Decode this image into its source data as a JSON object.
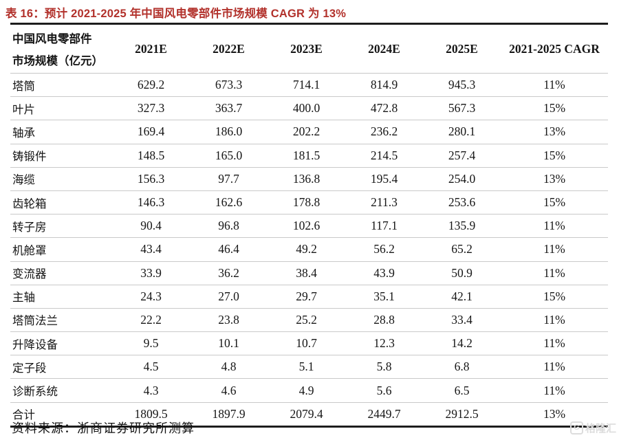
{
  "title": "表 16：预计 2021-2025 年中国风电零部件市场规模 CAGR 为 13%",
  "table": {
    "header_label_line1": "中国风电零部件",
    "header_label_line2": "市场规模（亿元）",
    "columns": [
      "2021E",
      "2022E",
      "2023E",
      "2024E",
      "2025E",
      "2021-2025 CAGR"
    ],
    "rows": [
      {
        "label": "塔筒",
        "values": [
          "629.2",
          "673.3",
          "714.1",
          "814.9",
          "945.3",
          "11%"
        ]
      },
      {
        "label": "叶片",
        "values": [
          "327.3",
          "363.7",
          "400.0",
          "472.8",
          "567.3",
          "15%"
        ]
      },
      {
        "label": "轴承",
        "values": [
          "169.4",
          "186.0",
          "202.2",
          "236.2",
          "280.1",
          "13%"
        ]
      },
      {
        "label": "铸锻件",
        "values": [
          "148.5",
          "165.0",
          "181.5",
          "214.5",
          "257.4",
          "15%"
        ]
      },
      {
        "label": "海缆",
        "values": [
          "156.3",
          "97.7",
          "136.8",
          "195.4",
          "254.0",
          "13%"
        ]
      },
      {
        "label": "齿轮箱",
        "values": [
          "146.3",
          "162.6",
          "178.8",
          "211.3",
          "253.6",
          "15%"
        ]
      },
      {
        "label": "转子房",
        "values": [
          "90.4",
          "96.8",
          "102.6",
          "117.1",
          "135.9",
          "11%"
        ]
      },
      {
        "label": "机舱罩",
        "values": [
          "43.4",
          "46.4",
          "49.2",
          "56.2",
          "65.2",
          "11%"
        ]
      },
      {
        "label": "变流器",
        "values": [
          "33.9",
          "36.2",
          "38.4",
          "43.9",
          "50.9",
          "11%"
        ]
      },
      {
        "label": "主轴",
        "values": [
          "24.3",
          "27.0",
          "29.7",
          "35.1",
          "42.1",
          "15%"
        ]
      },
      {
        "label": "塔筒法兰",
        "values": [
          "22.2",
          "23.8",
          "25.2",
          "28.8",
          "33.4",
          "11%"
        ]
      },
      {
        "label": "升降设备",
        "values": [
          "9.5",
          "10.1",
          "10.7",
          "12.3",
          "14.2",
          "11%"
        ]
      },
      {
        "label": "定子段",
        "values": [
          "4.5",
          "4.8",
          "5.1",
          "5.8",
          "6.8",
          "11%"
        ]
      },
      {
        "label": "诊断系统",
        "values": [
          "4.3",
          "4.6",
          "4.9",
          "5.6",
          "6.5",
          "11%"
        ]
      },
      {
        "label": "合计",
        "values": [
          "1809.5",
          "1897.9",
          "2079.4",
          "2449.7",
          "2912.5",
          "13%"
        ]
      }
    ]
  },
  "source": "资料来源：浙商证券研究所测算",
  "watermark": {
    "logo_letter": "G",
    "text": "格隆汇"
  },
  "colors": {
    "title_red": "#B2312B",
    "border_dark": "#1d1d1d",
    "row_line_gray": "#c9c9c9",
    "watermark_gray": "#dcdcdc",
    "background": "#ffffff"
  },
  "chart_data": {
    "type": "table",
    "title": "预计 2021-2025 年中国风电零部件市场规模 CAGR 为 13%",
    "unit": "亿元",
    "columns": [
      "2021E",
      "2022E",
      "2023E",
      "2024E",
      "2025E",
      "2021-2025 CAGR"
    ],
    "rows": [
      {
        "label": "塔筒",
        "values": [
          629.2,
          673.3,
          714.1,
          814.9,
          945.3
        ],
        "cagr": "11%"
      },
      {
        "label": "叶片",
        "values": [
          327.3,
          363.7,
          400.0,
          472.8,
          567.3
        ],
        "cagr": "15%"
      },
      {
        "label": "轴承",
        "values": [
          169.4,
          186.0,
          202.2,
          236.2,
          280.1
        ],
        "cagr": "13%"
      },
      {
        "label": "铸锻件",
        "values": [
          148.5,
          165.0,
          181.5,
          214.5,
          257.4
        ],
        "cagr": "15%"
      },
      {
        "label": "海缆",
        "values": [
          156.3,
          97.7,
          136.8,
          195.4,
          254.0
        ],
        "cagr": "13%"
      },
      {
        "label": "齿轮箱",
        "values": [
          146.3,
          162.6,
          178.8,
          211.3,
          253.6
        ],
        "cagr": "15%"
      },
      {
        "label": "转子房",
        "values": [
          90.4,
          96.8,
          102.6,
          117.1,
          135.9
        ],
        "cagr": "11%"
      },
      {
        "label": "机舱罩",
        "values": [
          43.4,
          46.4,
          49.2,
          56.2,
          65.2
        ],
        "cagr": "11%"
      },
      {
        "label": "变流器",
        "values": [
          33.9,
          36.2,
          38.4,
          43.9,
          50.9
        ],
        "cagr": "11%"
      },
      {
        "label": "主轴",
        "values": [
          24.3,
          27.0,
          29.7,
          35.1,
          42.1
        ],
        "cagr": "15%"
      },
      {
        "label": "塔筒法兰",
        "values": [
          22.2,
          23.8,
          25.2,
          28.8,
          33.4
        ],
        "cagr": "11%"
      },
      {
        "label": "升降设备",
        "values": [
          9.5,
          10.1,
          10.7,
          12.3,
          14.2
        ],
        "cagr": "11%"
      },
      {
        "label": "定子段",
        "values": [
          4.5,
          4.8,
          5.1,
          5.8,
          6.8
        ],
        "cagr": "11%"
      },
      {
        "label": "诊断系统",
        "values": [
          4.3,
          4.6,
          4.9,
          5.6,
          6.5
        ],
        "cagr": "11%"
      },
      {
        "label": "合计",
        "values": [
          1809.5,
          1897.9,
          2079.4,
          2449.7,
          2912.5
        ],
        "cagr": "13%"
      }
    ],
    "source": "浙商证券研究所测算",
    "layout": {
      "header_two_line_label": true,
      "thick_top_and_bottom_rules": true,
      "thin_gray_row_rules": true
    }
  }
}
